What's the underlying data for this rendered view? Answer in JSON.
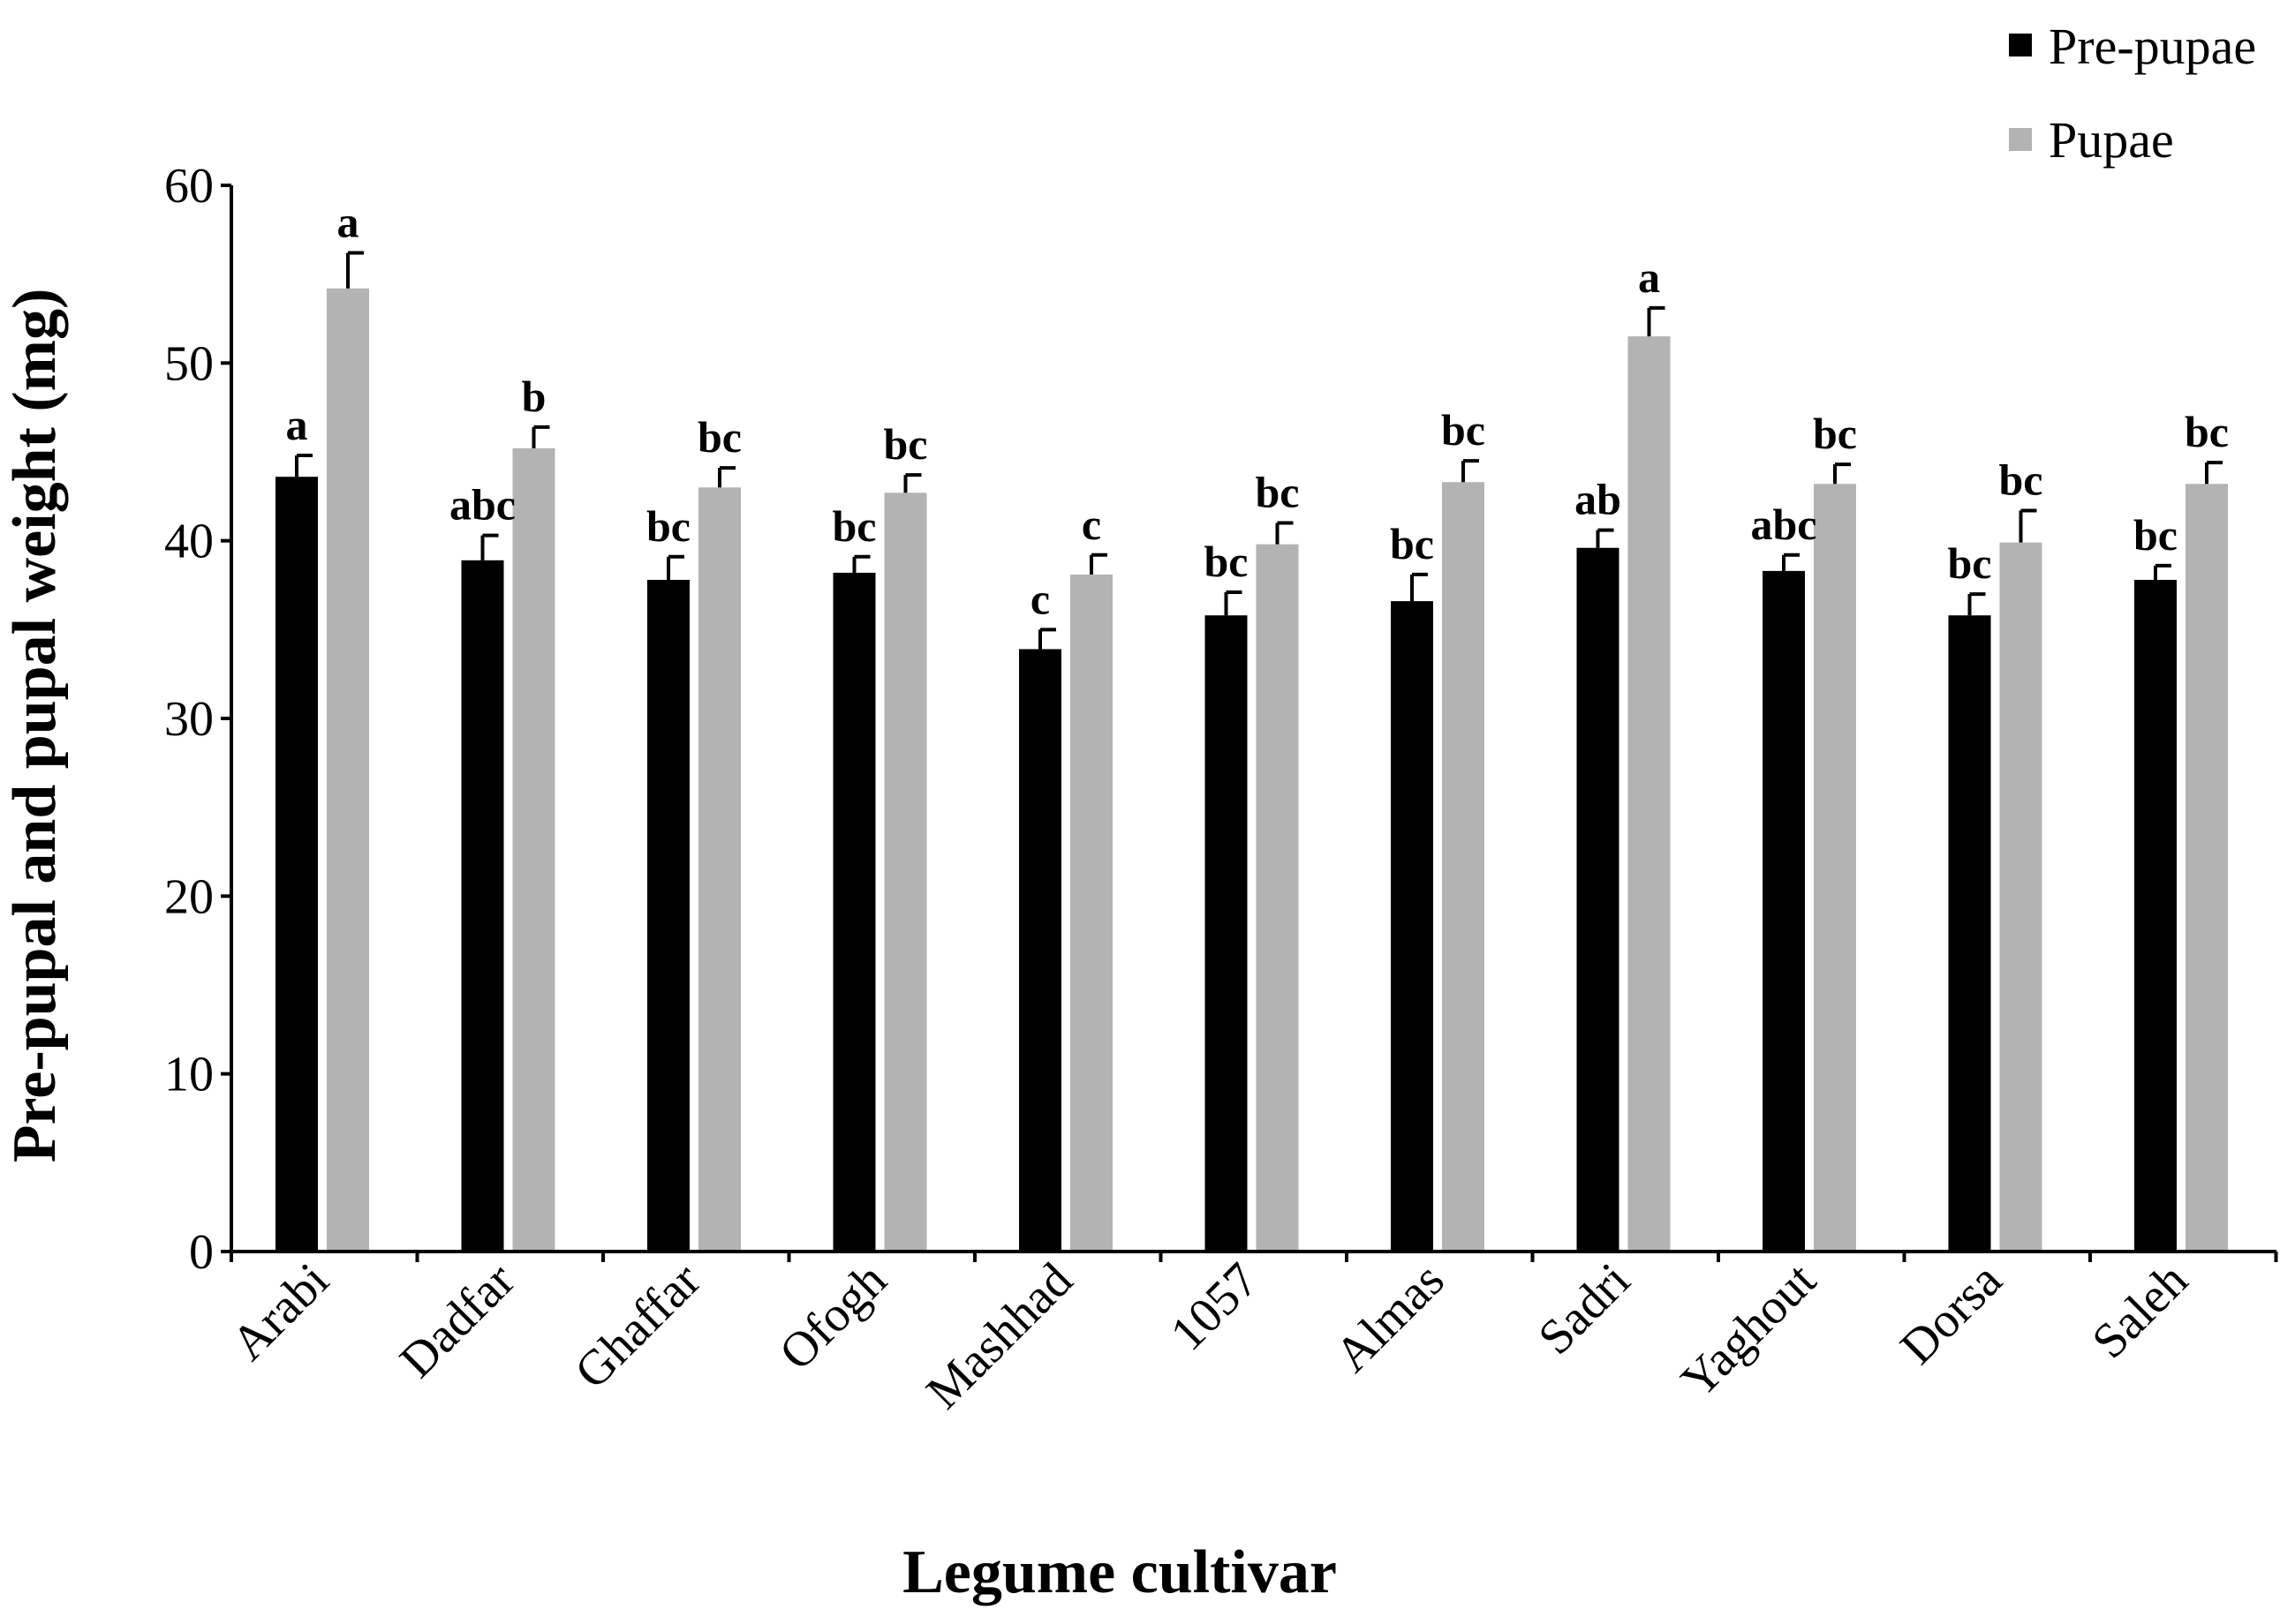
{
  "chart_data": {
    "type": "bar",
    "title": "",
    "xlabel": "Legume cultivar",
    "ylabel": "Pre-pupal and pupal weight (mg)",
    "ylim": [
      0,
      60
    ],
    "yticks": [
      0,
      10,
      20,
      30,
      40,
      50,
      60
    ],
    "grid": false,
    "legend_position": "top-right",
    "categories": [
      "Arabi",
      "Dadfar",
      "Ghaffar",
      "Ofogh",
      "Mashhad",
      "1057",
      "Almas",
      "Sadri",
      "Yaghout",
      "Dorsa",
      "Saleh"
    ],
    "series": [
      {
        "name": "Pre-pupae",
        "color": "#000000",
        "values": [
          43.6,
          38.9,
          37.8,
          38.2,
          33.9,
          35.8,
          36.6,
          39.6,
          38.3,
          35.8,
          37.8
        ],
        "errors": [
          1.2,
          1.4,
          1.3,
          0.9,
          1.1,
          1.3,
          1.5,
          1.0,
          0.9,
          1.2,
          0.8
        ],
        "letters": [
          "a",
          "abc",
          "bc",
          "bc",
          "c",
          "bc",
          "bc",
          "ab",
          "abc",
          "bc",
          "bc"
        ]
      },
      {
        "name": "Pupae",
        "color": "#b3b3b3",
        "values": [
          54.2,
          45.2,
          43.0,
          42.7,
          38.1,
          39.8,
          43.3,
          51.5,
          43.2,
          39.9,
          43.2
        ],
        "errors": [
          2.0,
          1.2,
          1.1,
          1.0,
          1.1,
          1.2,
          1.2,
          1.6,
          1.1,
          1.8,
          1.2
        ],
        "letters": [
          "a",
          "b",
          "bc",
          "bc",
          "c",
          "bc",
          "bc",
          "a",
          "bc",
          "bc",
          "bc"
        ]
      }
    ]
  }
}
